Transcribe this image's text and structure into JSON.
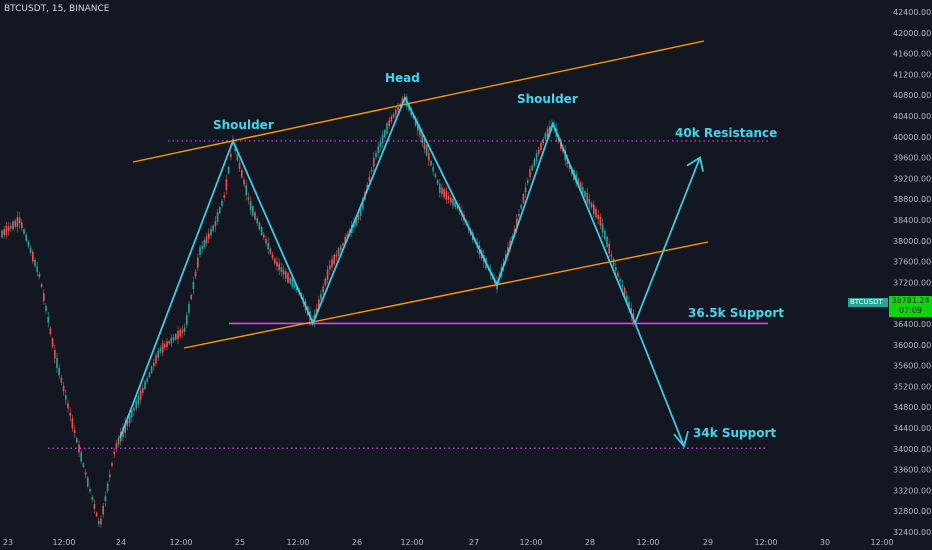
{
  "header": {
    "title": "BTCUSDT, 15, BINANCE"
  },
  "price_tag": {
    "symbol": "BTCUSDT",
    "price": "36781.24",
    "countdown": "07:09"
  },
  "chart_data": {
    "type": "line",
    "y_ticks": [
      "42400.00",
      "42000.00",
      "41600.00",
      "41200.00",
      "40800.00",
      "40400.00",
      "40000.00",
      "39600.00",
      "39200.00",
      "38800.00",
      "38400.00",
      "38000.00",
      "37600.00",
      "37200.00",
      "36800.00",
      "36400.00",
      "36000.00",
      "35600.00",
      "35200.00",
      "34800.00",
      "34400.00",
      "34000.00",
      "33600.00",
      "33200.00",
      "32800.00",
      "32400.00"
    ],
    "ylim": [
      32400,
      42400
    ],
    "x_ticks": [
      "23",
      "12:00",
      "24",
      "12:00",
      "25",
      "12:00",
      "26",
      "12:00",
      "27",
      "12:00",
      "28",
      "12:00",
      "29",
      "12:00",
      "30",
      "12:00"
    ],
    "annotations": {
      "head": "Head",
      "left_shoulder": "Shoulder",
      "right_shoulder": "Shoulder",
      "resistance": "40k Resistance",
      "support_mid": "36.5k Support",
      "support_low": "34k Support"
    },
    "levels": [
      {
        "name": "40k Resistance",
        "value": 39920,
        "style": "dotted",
        "color": "#e040fb"
      },
      {
        "name": "36.5k Support",
        "value": 36410,
        "style": "solid",
        "color": "#e040fb"
      },
      {
        "name": "34k Support",
        "value": 34010,
        "style": "dotted",
        "color": "#e040fb"
      }
    ],
    "pattern_line": [
      39920,
      36420,
      40750,
      37150,
      40250,
      36420
    ],
    "projection_up": [
      36420,
      39600
    ],
    "projection_down": [
      36420,
      34050
    ],
    "colors": {
      "background": "#131722",
      "pattern": "#3fc8e4",
      "channel": "#ff9800",
      "level": "#e040fb",
      "up": "#26a69a",
      "down": "#ef5350"
    }
  }
}
